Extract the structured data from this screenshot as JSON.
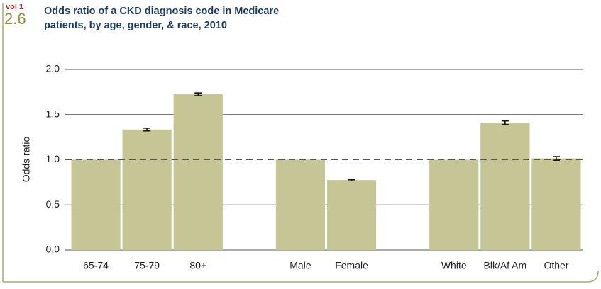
{
  "chart_data": {
    "type": "bar",
    "volume": "vol 1",
    "figure": "2.6",
    "title": [
      "Odds ratio of a CKD diagnosis code in Medicare",
      "patients, by age, gender, & race, 2010"
    ],
    "ylabel": "Odds ratio",
    "categories": [
      "65-74",
      "75-79",
      "80+",
      null,
      "Male",
      "Female",
      null,
      "White",
      "Blk/Af Am",
      "Other"
    ],
    "values": [
      1.0,
      1.335,
      1.725,
      null,
      1.0,
      0.775,
      null,
      1.0,
      1.41,
      1.015
    ],
    "errors": [
      null,
      0.015,
      0.015,
      null,
      null,
      0.008,
      null,
      null,
      0.02,
      0.02
    ],
    "color": "#c5c596",
    "ylim": [
      0,
      2
    ],
    "yticks": [
      {
        "value": 0,
        "label": "0.0"
      },
      {
        "value": 0.5,
        "label": "0.5"
      },
      {
        "value": 1,
        "label": "1.0"
      },
      {
        "value": 1.5,
        "label": "1.5"
      },
      {
        "value": 2,
        "label": "2.0"
      }
    ],
    "grid": true,
    "reference_line": 1
  }
}
